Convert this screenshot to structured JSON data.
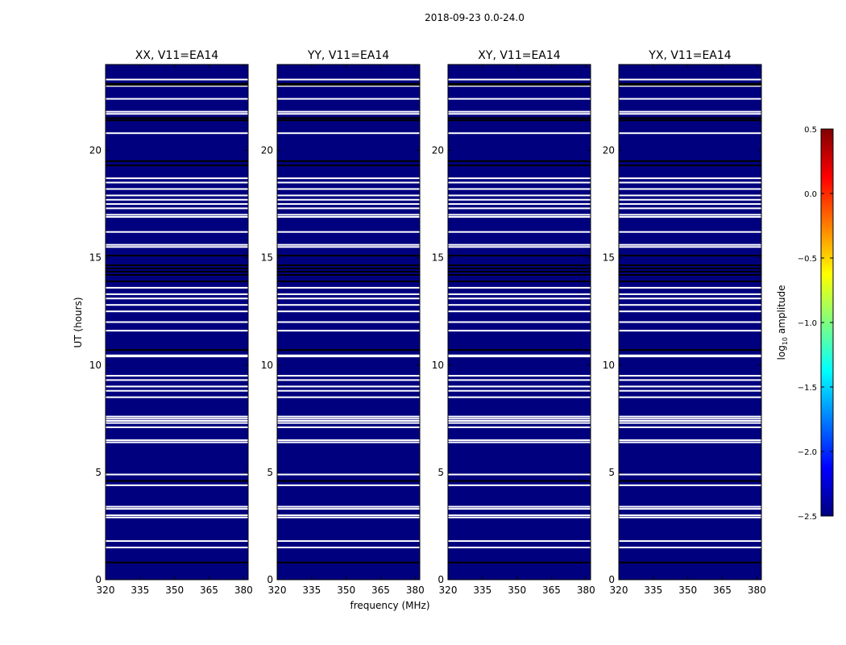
{
  "chart_data": {
    "type": "heatmap",
    "title": "2018-09-23 0.0-24.0",
    "xlabel": "frequency (MHz)",
    "ylabel": "UT (hours)",
    "xlim": [
      320,
      382
    ],
    "ylim": [
      0,
      24
    ],
    "xticks": [
      "320",
      "335",
      "350",
      "365",
      "380"
    ],
    "yticks": [
      "0",
      "5",
      "10",
      "15",
      "20"
    ],
    "panels": [
      {
        "title": "XX, V11=EA14"
      },
      {
        "title": "YY, V11=EA14"
      },
      {
        "title": "XY, V11=EA14"
      },
      {
        "title": "YX, V11=EA14"
      }
    ],
    "fill_value_log10": -2.5,
    "fill_color": "#00007f",
    "gap_hours": [
      1.5,
      1.8,
      2.9,
      3.0,
      3.3,
      3.4,
      4.4,
      4.9,
      6.4,
      6.5,
      7.1,
      7.3,
      7.4,
      7.5,
      7.6,
      8.5,
      8.8,
      9.0,
      9.3,
      9.5,
      10.4,
      10.45,
      11.6,
      12.0,
      12.5,
      12.8,
      13.1,
      13.3,
      13.6,
      15.5,
      15.6,
      16.2,
      16.9,
      17.0,
      17.3,
      17.5,
      17.7,
      17.9,
      18.2,
      18.5,
      18.7,
      20.8,
      21.7,
      21.8,
      22.4,
      23.0,
      23.3
    ],
    "flagged_hours": [
      0.8,
      4.6,
      10.7,
      13.9,
      14.2,
      14.35,
      14.5,
      14.65,
      15.1,
      19.3,
      19.5,
      21.4,
      21.5,
      23.05,
      23.1
    ],
    "colorbar": {
      "label": "log10 amplitude",
      "range": [
        -2.5,
        0.5
      ],
      "ticks": [
        "0.5",
        "0.0",
        "−0.5",
        "−1.0",
        "−1.5",
        "−2.0",
        "−2.5"
      ],
      "colormap": [
        "#00007f",
        "#0000ff",
        "#007fff",
        "#00ffff",
        "#7fff7f",
        "#ffff00",
        "#ff7f00",
        "#ff0000",
        "#7f0000"
      ]
    }
  }
}
